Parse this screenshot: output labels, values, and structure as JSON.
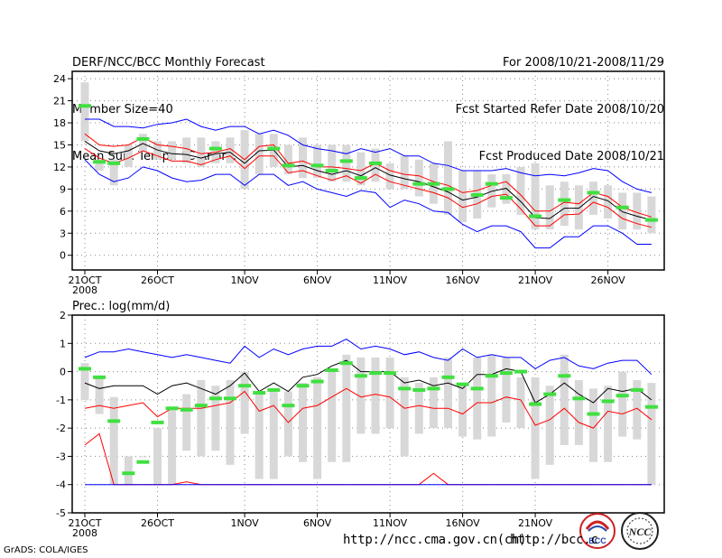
{
  "header": {
    "title": "DERF/NCC/BCC Monthly Forecast",
    "member_size": "Member Size=40",
    "variable": "Mean Surf. Temp.: °C Anom.",
    "period": "For 2008/10/21-2008/11/29",
    "started": "Fcst Started Refer Date 2008/10/20",
    "produced": "Fcst Produced Date 2008/10/21"
  },
  "footer": {
    "grads": "GrADS: COLA/IGES",
    "url1": "http://ncc.cma.gov.cn(ch)",
    "url2": "http://bcc.c",
    "logo_bcc": "BCC",
    "logo_ncc": "NCC"
  },
  "colors": {
    "ensemble_max_min": "#0000ff",
    "ensemble_mean": "#000000",
    "spread_band": "#ff0000",
    "box": "#d8d8d8",
    "green_mark": "#40e040",
    "grid": "#888888"
  },
  "chart_data": [
    {
      "type": "line",
      "title": "Mean Surf. Temp.: °C Anom.",
      "x_tick_labels": [
        "21OCT",
        "26OCT",
        "1NOV",
        "6NOV",
        "11NOV",
        "16NOV",
        "21NOV",
        "26NOV"
      ],
      "x_year_label": "2008",
      "x_tick_days": [
        1,
        6,
        12,
        17,
        22,
        27,
        32,
        37
      ],
      "ylim": [
        -2,
        25
      ],
      "y_ticks": [
        0,
        3,
        6,
        9,
        12,
        15,
        18,
        21,
        24
      ],
      "days": [
        1,
        2,
        3,
        4,
        5,
        6,
        7,
        8,
        9,
        10,
        11,
        12,
        13,
        14,
        15,
        16,
        17,
        18,
        19,
        20,
        21,
        22,
        23,
        24,
        25,
        26,
        27,
        28,
        29,
        30,
        31,
        32,
        33,
        34,
        35,
        36,
        37,
        38,
        39,
        40
      ],
      "series": [
        {
          "name": "max",
          "values": [
            18.5,
            18.5,
            17.5,
            17.5,
            17.3,
            17.8,
            18,
            18.5,
            17.5,
            17,
            17.5,
            17.5,
            16.5,
            17,
            16.3,
            15,
            14.5,
            14.2,
            13.8,
            14.5,
            14,
            14.5,
            13.5,
            13.5,
            12.5,
            12.2,
            11.5,
            11.5,
            11.5,
            11.8,
            11.2,
            10.8,
            11,
            10.8,
            11.2,
            11.8,
            11.5,
            10,
            9,
            8.5
          ]
        },
        {
          "name": "upper",
          "values": [
            16.5,
            15,
            14.8,
            15,
            16,
            15,
            14.8,
            14.5,
            13.8,
            14,
            14.5,
            13,
            14.8,
            15,
            12.5,
            12.8,
            12,
            12,
            11.8,
            11.5,
            12.5,
            11.5,
            11,
            10.8,
            10,
            9.5,
            8.5,
            8.8,
            9.5,
            10,
            8.2,
            6,
            6,
            7.2,
            7,
            8.5,
            8,
            6.5,
            5.8,
            5.2
          ]
        },
        {
          "name": "mean",
          "values": [
            15.5,
            14.2,
            13.8,
            14.2,
            15.2,
            14.3,
            13.8,
            13.7,
            13.2,
            13.8,
            14,
            12.5,
            14.2,
            14.3,
            12,
            12.2,
            11.5,
            11,
            11.5,
            10.8,
            11.9,
            10.9,
            10.4,
            10,
            9.3,
            8.6,
            7.5,
            7.9,
            8.7,
            9.1,
            7.3,
            5.1,
            5,
            6.4,
            6.4,
            8,
            7.4,
            5.9,
            5.3,
            4.8
          ]
        },
        {
          "name": "lower",
          "values": [
            14.5,
            13.2,
            12.5,
            13.2,
            14.2,
            13.5,
            12.8,
            12.8,
            12.3,
            13,
            13.5,
            11.8,
            13.5,
            13.5,
            11.2,
            11.5,
            10.8,
            10.2,
            10.8,
            9.8,
            11,
            10,
            9.5,
            9,
            8.5,
            7.8,
            6.5,
            7,
            8,
            8.3,
            6.3,
            4,
            4,
            5.5,
            5.6,
            7.2,
            6.5,
            5,
            4.3,
            3.8
          ]
        },
        {
          "name": "min",
          "values": [
            13,
            11,
            10,
            10.5,
            12,
            11.5,
            10.5,
            10,
            10.2,
            11,
            11,
            9.5,
            11,
            11,
            9.5,
            10,
            9,
            8.5,
            8,
            8.8,
            8.5,
            6.5,
            7.5,
            7,
            6,
            5.8,
            4.2,
            3.2,
            4,
            4,
            3.2,
            1,
            1,
            2.5,
            2.5,
            4,
            4,
            3,
            1.5,
            1.5
          ]
        }
      ],
      "box_low": [
        15.5,
        11.5,
        9.5,
        12,
        14,
        13,
        13,
        12.5,
        12,
        12.5,
        12.5,
        9,
        11,
        12,
        11,
        10.5,
        10.5,
        10,
        10,
        9.5,
        10,
        9,
        9,
        8,
        7,
        5.5,
        4.5,
        5,
        6.5,
        7,
        5.5,
        3.5,
        3.5,
        4,
        3.5,
        5.5,
        5,
        3.5,
        3.5,
        3
      ],
      "box_high": [
        23.5,
        13,
        13,
        15,
        16.5,
        15.5,
        15.5,
        16,
        16,
        15.5,
        16,
        17,
        16.5,
        16.5,
        15,
        16,
        15,
        15,
        15,
        14,
        14.5,
        12.5,
        13.5,
        13,
        12.5,
        15.5,
        11.5,
        11.5,
        11,
        11,
        12,
        12.5,
        9.5,
        10,
        9.5,
        10,
        9.5,
        8.5,
        8.5,
        8
      ],
      "observed": [
        20.3,
        12.7,
        12.5,
        null,
        15.8,
        null,
        null,
        null,
        null,
        14.5,
        null,
        null,
        null,
        14.5,
        12.2,
        null,
        12.2,
        11.5,
        12.8,
        10.5,
        12.5,
        null,
        null,
        9.7,
        9.7,
        9,
        null,
        8.2,
        9.7,
        7.8,
        null,
        5.3,
        null,
        7.5,
        null,
        8.5,
        null,
        6.5,
        null,
        4.8
      ]
    },
    {
      "type": "line",
      "title": "Prec.: log(mm/d)",
      "x_tick_labels": [
        "21OCT",
        "26OCT",
        "1NOV",
        "6NOV",
        "11NOV",
        "16NOV",
        "21NOV"
      ],
      "x_year_label": "2008",
      "x_tick_days": [
        1,
        6,
        12,
        17,
        22,
        27,
        32
      ],
      "ylim": [
        -5,
        2
      ],
      "y_ticks": [
        -5,
        -4,
        -3,
        -2,
        -1,
        0,
        1,
        2
      ],
      "days": [
        1,
        2,
        3,
        4,
        5,
        6,
        7,
        8,
        9,
        10,
        11,
        12,
        13,
        14,
        15,
        16,
        17,
        18,
        19,
        20,
        21,
        22,
        23,
        24,
        25,
        26,
        27,
        28,
        29,
        30,
        31,
        32,
        33,
        34,
        35,
        36,
        37,
        38,
        39,
        40
      ],
      "series": [
        {
          "name": "max",
          "values": [
            0.5,
            0.7,
            0.7,
            0.8,
            0.7,
            0.6,
            0.5,
            0.6,
            0.5,
            0.4,
            0.3,
            0.9,
            0.5,
            0.8,
            0.6,
            0.8,
            0.9,
            0.9,
            1.15,
            0.8,
            0.9,
            0.8,
            0.6,
            0.7,
            0.5,
            0.4,
            0.8,
            0.5,
            0.6,
            0.5,
            0.5,
            0.1,
            0.4,
            0.5,
            0.2,
            0.1,
            0.3,
            0.4,
            0.4,
            -0.1
          ]
        },
        {
          "name": "mean",
          "values": [
            -0.4,
            -0.6,
            -0.5,
            -0.5,
            -0.5,
            -0.8,
            -0.5,
            -0.4,
            -0.6,
            -0.8,
            -0.5,
            -0.05,
            -0.7,
            -0.4,
            -0.7,
            -0.2,
            -0.1,
            0.2,
            0.4,
            0.0,
            0.0,
            0.0,
            -0.4,
            -0.3,
            -0.5,
            -0.4,
            -0.6,
            -0.1,
            -0.1,
            0.1,
            0.0,
            -1.1,
            -0.8,
            -0.4,
            -0.8,
            -1.1,
            -0.6,
            -0.7,
            -0.6,
            -1.0
          ]
        },
        {
          "name": "upper",
          "values": [
            -1.3,
            -1.2,
            -1.3,
            -1.2,
            -1.1,
            -1.6,
            -1.3,
            -1.3,
            -1.3,
            -1.2,
            -1.1,
            -0.7,
            -1.4,
            -1.2,
            -1.8,
            -1.3,
            -1.2,
            -0.9,
            -0.6,
            -0.9,
            -0.8,
            -0.9,
            -1.3,
            -1.2,
            -1.3,
            -1.3,
            -1.5,
            -1.1,
            -1.1,
            -0.9,
            -1.0,
            -1.9,
            -1.7,
            -1.3,
            -1.8,
            -2.0,
            -1.4,
            -1.5,
            -1.3,
            -1.7
          ]
        },
        {
          "name": "lower",
          "values": [
            -2.6,
            -2.2,
            -4.0,
            -4.0,
            -4.0,
            -4.0,
            -4.0,
            -3.9,
            -4.0,
            -4.0,
            -4.0,
            -4.0,
            -4.0,
            -4.0,
            -4.0,
            -4.0,
            -4.0,
            -4.0,
            -4.0,
            -4.0,
            -4.0,
            -4.0,
            -4.0,
            -4.0,
            -3.6,
            -4.0,
            -4.0,
            -4.0,
            -4.0,
            -4.0,
            -4.0,
            -4.0,
            -4.0,
            -4.0,
            -4.0,
            -4.0,
            -4.0,
            -4.0,
            -4.0,
            -4.0
          ]
        },
        {
          "name": "min",
          "values": [
            -4.0,
            -4.0,
            -4.0,
            -4.0,
            -4.0,
            -4.0,
            -4.0,
            -4.0,
            -4.0,
            -4.0,
            -4.0,
            -4.0,
            -4.0,
            -4.0,
            -4.0,
            -4.0,
            -4.0,
            -4.0,
            -4.0,
            -4.0,
            -4.0,
            -4.0,
            -4.0,
            -4.0,
            -4.0,
            -4.0,
            -4.0,
            -4.0,
            -4.0,
            -4.0,
            -4.0,
            -4.0,
            -4.0,
            -4.0,
            -4.0,
            -4.0,
            -4.0,
            -4.0,
            -4.0,
            -4.0
          ]
        }
      ],
      "box_low": [
        -1.0,
        -1.5,
        -4.0,
        -4.0,
        -3.0,
        -4.0,
        -4.0,
        -2.8,
        -3.0,
        -2.8,
        -3.3,
        -2.2,
        -3.8,
        -3.8,
        -3.0,
        -3.2,
        -3.8,
        -3.2,
        -3.2,
        -2.2,
        -2.2,
        -2.0,
        -3.0,
        -2.2,
        -2.0,
        -2.0,
        -2.3,
        -2.4,
        -2.3,
        -1.8,
        -2.0,
        -3.8,
        -3.3,
        -2.6,
        -2.6,
        -3.2,
        -3.2,
        -2.3,
        -2.4,
        -4.0
      ],
      "box_high": [
        0.3,
        -0.2,
        -0.9,
        -3.0,
        -3.0,
        -2.0,
        -1.3,
        -0.8,
        -0.3,
        -0.5,
        -0.3,
        0.0,
        -0.7,
        -0.6,
        -0.7,
        -0.4,
        -0.2,
        0.0,
        0.6,
        0.5,
        0.5,
        0.5,
        -0.2,
        -0.4,
        -0.2,
        0.5,
        -0.5,
        0.5,
        0.6,
        0.5,
        -0.2,
        -0.2,
        -0.5,
        0.6,
        -0.3,
        -0.6,
        -0.5,
        0.0,
        -0.3,
        -0.4
      ],
      "observed": [
        0.1,
        -0.2,
        -1.75,
        -3.6,
        -3.2,
        -1.8,
        -1.3,
        -1.35,
        -1.2,
        -0.95,
        -0.95,
        -0.5,
        -0.75,
        -0.65,
        -1.2,
        -0.5,
        -0.35,
        0.05,
        0.3,
        -0.15,
        -0.05,
        -0.05,
        -0.6,
        -0.65,
        -0.6,
        -0.2,
        -0.45,
        -0.6,
        -0.15,
        -0.05,
        0.0,
        -1.15,
        -0.8,
        -0.15,
        -0.95,
        -1.5,
        -1.05,
        -0.85,
        -0.65,
        -1.25
      ]
    }
  ]
}
